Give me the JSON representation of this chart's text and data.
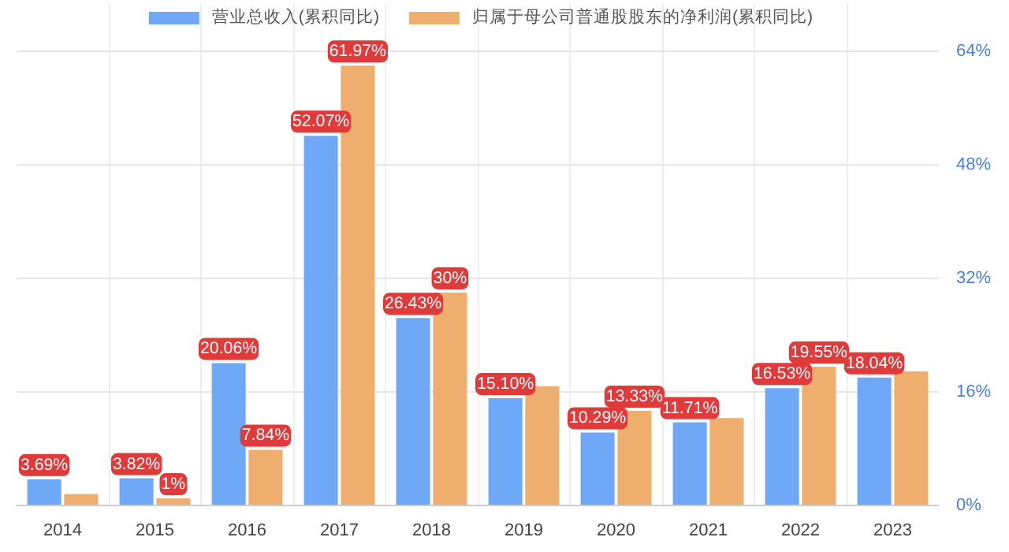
{
  "chart_data": {
    "type": "bar",
    "categories": [
      "2014",
      "2015",
      "2016",
      "2017",
      "2018",
      "2019",
      "2020",
      "2021",
      "2022",
      "2023"
    ],
    "series": [
      {
        "name": "营业总收入(累积同比)",
        "color": "#6ea8f7",
        "values": [
          3.69,
          3.82,
          20.06,
          52.07,
          26.43,
          15.1,
          10.29,
          11.71,
          16.53,
          18.04
        ],
        "value_labels": [
          "3.69%",
          "3.82%",
          "20.06%",
          "52.07%",
          "26.43%",
          "15.10%",
          "10.29%",
          "11.71%",
          "16.53%",
          "18.04%"
        ]
      },
      {
        "name": "归属于母公司普通股股东的净利润(累积同比)",
        "color": "#f0ae6e",
        "values": [
          1.6,
          1,
          7.84,
          61.97,
          30,
          16.8,
          13.33,
          12.3,
          19.55,
          18.9
        ],
        "value_labels": [
          null,
          "1%",
          "7.84%",
          "61.97%",
          "30%",
          null,
          "13.33%",
          null,
          "19.55%",
          null
        ]
      }
    ],
    "ylim": [
      0,
      64
    ],
    "yticks": [
      {
        "value": 0,
        "label": "0%"
      },
      {
        "value": 16,
        "label": "16%"
      },
      {
        "value": 32,
        "label": "32%"
      },
      {
        "value": 48,
        "label": "48%"
      },
      {
        "value": 64,
        "label": "64%"
      }
    ],
    "grid": true,
    "legend": "top"
  }
}
